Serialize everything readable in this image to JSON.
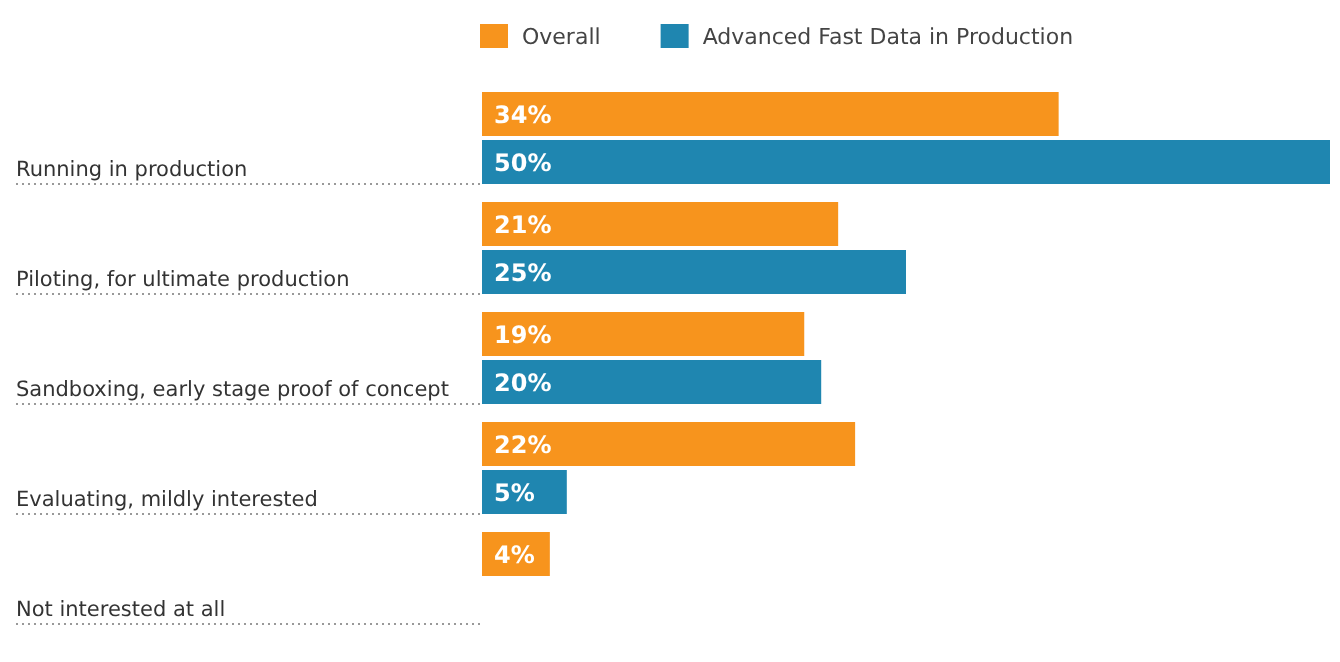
{
  "chart_data": {
    "type": "bar",
    "orientation": "horizontal",
    "categories": [
      "Running in production",
      "Piloting, for ultimate production",
      "Sandboxing, early stage proof of concept",
      "Evaluating, mildly interested",
      "Not interested at all"
    ],
    "series": [
      {
        "name": "Overall",
        "color": "#f7941d",
        "values": [
          34,
          21,
          19,
          22,
          4
        ],
        "value_labels": [
          "34%",
          "21%",
          "19%",
          "22%",
          "4%"
        ]
      },
      {
        "name": "Advanced Fast Data in Production",
        "color": "#1f86b0",
        "values": [
          50,
          25,
          20,
          5,
          null
        ],
        "value_labels": [
          "50%",
          "25%",
          "20%",
          "5%",
          null
        ]
      }
    ],
    "legend": "top"
  }
}
